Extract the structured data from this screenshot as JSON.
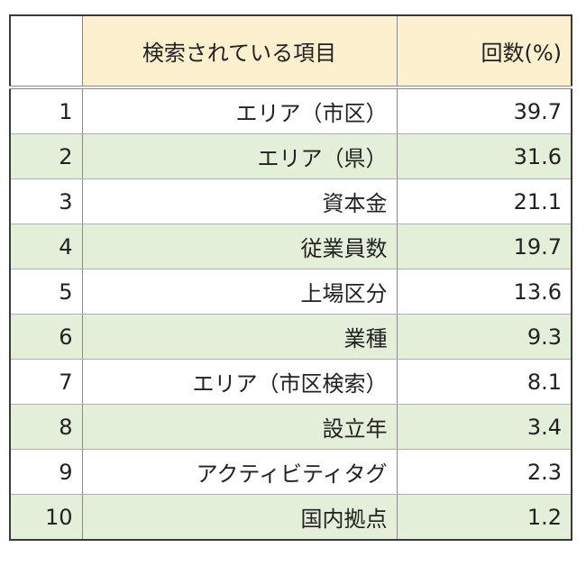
{
  "chart_data": {
    "type": "table",
    "columns": [
      "",
      "検索されている項目",
      "回数(%)"
    ],
    "rows": [
      {
        "rank": "1",
        "item": "エリア（市区）",
        "value": "39.7"
      },
      {
        "rank": "2",
        "item": "エリア（県）",
        "value": "31.6"
      },
      {
        "rank": "3",
        "item": "資本金",
        "value": "21.1"
      },
      {
        "rank": "4",
        "item": "従業員数",
        "value": "19.7"
      },
      {
        "rank": "5",
        "item": "上場区分",
        "value": "13.6"
      },
      {
        "rank": "6",
        "item": "業種",
        "value": "9.3"
      },
      {
        "rank": "7",
        "item": "エリア（市区検索）",
        "value": "8.1"
      },
      {
        "rank": "8",
        "item": "設立年",
        "value": "3.4"
      },
      {
        "rank": "9",
        "item": "アクティビティタグ",
        "value": "2.3"
      },
      {
        "rank": "10",
        "item": "国内拠点",
        "value": "1.2"
      }
    ]
  },
  "colors": {
    "header_bg": "#fdf0cf",
    "stripe_bg": "#e3efd9",
    "border": "#3a3a3a"
  }
}
